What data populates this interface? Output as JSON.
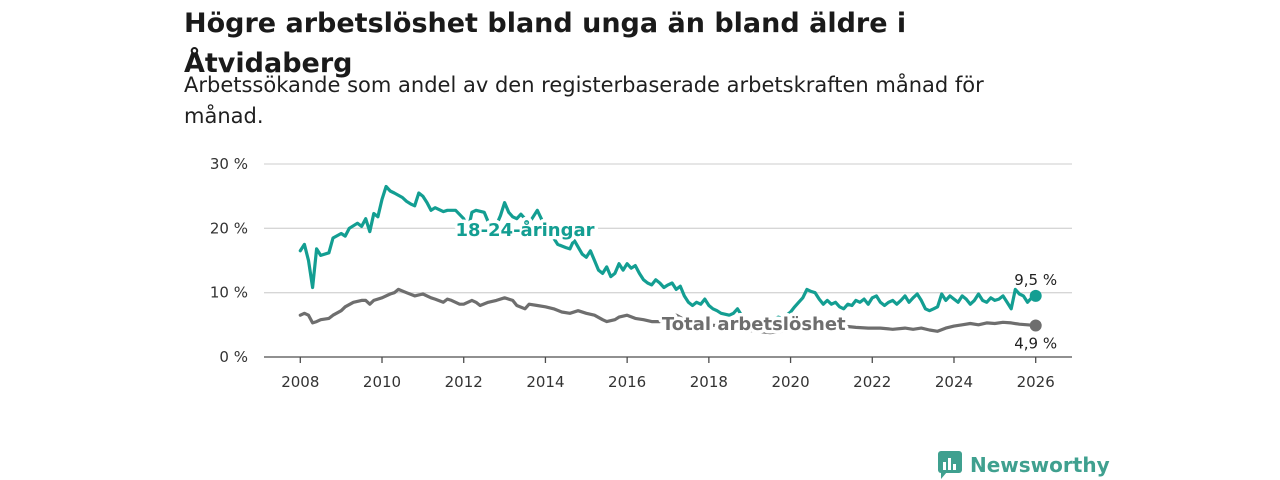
{
  "title": "Högre arbetslöshet bland unga än bland äldre i Åtvidaberg",
  "subtitle": "Arbetssökande som andel av den registerbaserade arbetskraften månad för månad.",
  "brand": {
    "name": "Newsworthy",
    "color": "#3fa08f"
  },
  "chart_data": {
    "type": "line",
    "title": "Högre arbetslöshet bland unga än bland äldre i Åtvidaberg",
    "subtitle": "Arbetssökande som andel av den registerbaserade arbetskraften månad för månad.",
    "xlabel": "",
    "ylabel": "",
    "xlim": [
      2007.5,
      2026.6
    ],
    "ylim": [
      0,
      30
    ],
    "grid": true,
    "x_ticks": [
      2008,
      2010,
      2012,
      2014,
      2016,
      2018,
      2020,
      2022,
      2024,
      2026
    ],
    "x_tick_labels": [
      "2008",
      "2010",
      "2012",
      "2014",
      "2016",
      "2018",
      "2020",
      "2022",
      "2024",
      "2026"
    ],
    "y_ticks": [
      0,
      10,
      20,
      30
    ],
    "y_tick_labels": [
      "0 %",
      "10 %",
      "20 %",
      "30 %"
    ],
    "series": [
      {
        "name": "18-24-åringar",
        "label": "18-24-åringar",
        "color": "#139e92",
        "end_label": "9,5 %",
        "points": [
          [
            2008.0,
            16.5
          ],
          [
            2008.1,
            17.5
          ],
          [
            2008.2,
            15.0
          ],
          [
            2008.3,
            10.8
          ],
          [
            2008.4,
            16.8
          ],
          [
            2008.5,
            15.8
          ],
          [
            2008.7,
            16.2
          ],
          [
            2008.8,
            18.5
          ],
          [
            2009.0,
            19.2
          ],
          [
            2009.1,
            18.8
          ],
          [
            2009.2,
            20.0
          ],
          [
            2009.4,
            20.8
          ],
          [
            2009.5,
            20.3
          ],
          [
            2009.6,
            21.5
          ],
          [
            2009.7,
            19.5
          ],
          [
            2009.8,
            22.3
          ],
          [
            2009.9,
            21.8
          ],
          [
            2010.0,
            24.5
          ],
          [
            2010.1,
            26.5
          ],
          [
            2010.2,
            25.8
          ],
          [
            2010.3,
            25.5
          ],
          [
            2010.5,
            24.8
          ],
          [
            2010.6,
            24.2
          ],
          [
            2010.7,
            23.8
          ],
          [
            2010.8,
            23.5
          ],
          [
            2010.9,
            25.5
          ],
          [
            2011.0,
            25.0
          ],
          [
            2011.1,
            24.0
          ],
          [
            2011.2,
            22.8
          ],
          [
            2011.3,
            23.2
          ],
          [
            2011.5,
            22.6
          ],
          [
            2011.6,
            22.8
          ],
          [
            2011.8,
            22.8
          ],
          [
            2012.0,
            21.5
          ],
          [
            2012.1,
            19.5
          ],
          [
            2012.2,
            22.5
          ],
          [
            2012.3,
            22.8
          ],
          [
            2012.5,
            22.5
          ],
          [
            2012.6,
            21.0
          ],
          [
            2012.8,
            20.5
          ],
          [
            2012.9,
            22.0
          ],
          [
            2013.0,
            24.0
          ],
          [
            2013.1,
            22.5
          ],
          [
            2013.2,
            21.8
          ],
          [
            2013.3,
            21.5
          ],
          [
            2013.4,
            22.2
          ],
          [
            2013.6,
            20.8
          ],
          [
            2013.8,
            22.8
          ],
          [
            2013.9,
            21.5
          ],
          [
            2014.0,
            20.0
          ],
          [
            2014.1,
            19.5
          ],
          [
            2014.2,
            18.5
          ],
          [
            2014.3,
            17.5
          ],
          [
            2014.5,
            17.0
          ],
          [
            2014.6,
            16.8
          ],
          [
            2014.7,
            18.2
          ],
          [
            2014.9,
            16.0
          ],
          [
            2015.0,
            15.5
          ],
          [
            2015.1,
            16.5
          ],
          [
            2015.2,
            15.0
          ],
          [
            2015.3,
            13.5
          ],
          [
            2015.4,
            13.0
          ],
          [
            2015.5,
            14.0
          ],
          [
            2015.6,
            12.5
          ],
          [
            2015.7,
            13.0
          ],
          [
            2015.8,
            14.5
          ],
          [
            2015.9,
            13.5
          ],
          [
            2016.0,
            14.5
          ],
          [
            2016.1,
            13.8
          ],
          [
            2016.2,
            14.2
          ],
          [
            2016.3,
            13.0
          ],
          [
            2016.4,
            12.0
          ],
          [
            2016.5,
            11.5
          ],
          [
            2016.6,
            11.2
          ],
          [
            2016.7,
            12.0
          ],
          [
            2016.8,
            11.5
          ],
          [
            2016.9,
            10.8
          ],
          [
            2017.0,
            11.2
          ],
          [
            2017.1,
            11.5
          ],
          [
            2017.2,
            10.5
          ],
          [
            2017.3,
            11.0
          ],
          [
            2017.4,
            9.5
          ],
          [
            2017.5,
            8.5
          ],
          [
            2017.6,
            8.0
          ],
          [
            2017.7,
            8.5
          ],
          [
            2017.8,
            8.2
          ],
          [
            2017.9,
            9.0
          ],
          [
            2018.0,
            8.0
          ],
          [
            2018.1,
            7.5
          ],
          [
            2018.2,
            7.2
          ],
          [
            2018.3,
            6.8
          ],
          [
            2018.5,
            6.5
          ],
          [
            2018.6,
            6.8
          ],
          [
            2018.7,
            7.5
          ],
          [
            2018.8,
            6.5
          ],
          [
            2018.9,
            6.0
          ],
          [
            2019.0,
            5.8
          ],
          [
            2019.1,
            5.5
          ],
          [
            2019.2,
            5.2
          ],
          [
            2019.3,
            5.5
          ],
          [
            2019.4,
            5.0
          ],
          [
            2019.5,
            5.3
          ],
          [
            2019.6,
            5.8
          ],
          [
            2019.7,
            6.2
          ],
          [
            2019.8,
            6.0
          ],
          [
            2019.9,
            6.5
          ],
          [
            2020.0,
            7.0
          ],
          [
            2020.1,
            7.8
          ],
          [
            2020.2,
            8.5
          ],
          [
            2020.3,
            9.2
          ],
          [
            2020.4,
            10.5
          ],
          [
            2020.5,
            10.2
          ],
          [
            2020.6,
            10.0
          ],
          [
            2020.7,
            9.0
          ],
          [
            2020.8,
            8.2
          ],
          [
            2020.9,
            8.8
          ],
          [
            2021.0,
            8.2
          ],
          [
            2021.1,
            8.5
          ],
          [
            2021.2,
            7.8
          ],
          [
            2021.3,
            7.5
          ],
          [
            2021.4,
            8.2
          ],
          [
            2021.5,
            8.0
          ],
          [
            2021.6,
            8.8
          ],
          [
            2021.7,
            8.5
          ],
          [
            2021.8,
            9.0
          ],
          [
            2021.9,
            8.2
          ],
          [
            2022.0,
            9.2
          ],
          [
            2022.1,
            9.5
          ],
          [
            2022.2,
            8.5
          ],
          [
            2022.3,
            8.0
          ],
          [
            2022.4,
            8.5
          ],
          [
            2022.5,
            8.8
          ],
          [
            2022.6,
            8.2
          ],
          [
            2022.7,
            8.8
          ],
          [
            2022.8,
            9.5
          ],
          [
            2022.9,
            8.5
          ],
          [
            2023.0,
            9.2
          ],
          [
            2023.1,
            9.8
          ],
          [
            2023.2,
            8.8
          ],
          [
            2023.3,
            7.5
          ],
          [
            2023.4,
            7.2
          ],
          [
            2023.5,
            7.5
          ],
          [
            2023.6,
            7.8
          ],
          [
            2023.7,
            9.8
          ],
          [
            2023.8,
            8.8
          ],
          [
            2023.9,
            9.5
          ],
          [
            2024.0,
            9.0
          ],
          [
            2024.1,
            8.5
          ],
          [
            2024.2,
            9.5
          ],
          [
            2024.3,
            9.0
          ],
          [
            2024.4,
            8.2
          ],
          [
            2024.5,
            8.8
          ],
          [
            2024.6,
            9.8
          ],
          [
            2024.7,
            8.8
          ],
          [
            2024.8,
            8.5
          ],
          [
            2024.9,
            9.2
          ],
          [
            2025.0,
            8.8
          ],
          [
            2025.1,
            9.0
          ],
          [
            2025.2,
            9.5
          ],
          [
            2025.3,
            8.5
          ],
          [
            2025.4,
            7.5
          ],
          [
            2025.5,
            10.5
          ],
          [
            2025.6,
            9.8
          ],
          [
            2025.7,
            9.5
          ],
          [
            2025.8,
            8.5
          ],
          [
            2025.9,
            9.2
          ],
          [
            2026.0,
            9.5
          ]
        ]
      },
      {
        "name": "Total arbetslöshet",
        "label": "Total arbetslöshet",
        "color": "#6e6e6e",
        "end_label": "4,9 %",
        "points": [
          [
            2008.0,
            6.5
          ],
          [
            2008.1,
            6.8
          ],
          [
            2008.2,
            6.5
          ],
          [
            2008.3,
            5.3
          ],
          [
            2008.4,
            5.5
          ],
          [
            2008.5,
            5.8
          ],
          [
            2008.7,
            6.0
          ],
          [
            2008.8,
            6.5
          ],
          [
            2009.0,
            7.2
          ],
          [
            2009.1,
            7.8
          ],
          [
            2009.3,
            8.5
          ],
          [
            2009.5,
            8.8
          ],
          [
            2009.6,
            8.8
          ],
          [
            2009.7,
            8.2
          ],
          [
            2009.8,
            8.8
          ],
          [
            2010.0,
            9.2
          ],
          [
            2010.2,
            9.8
          ],
          [
            2010.3,
            10.0
          ],
          [
            2010.4,
            10.5
          ],
          [
            2010.6,
            10.0
          ],
          [
            2010.8,
            9.5
          ],
          [
            2011.0,
            9.8
          ],
          [
            2011.2,
            9.2
          ],
          [
            2011.3,
            9.0
          ],
          [
            2011.5,
            8.5
          ],
          [
            2011.6,
            9.0
          ],
          [
            2011.7,
            8.8
          ],
          [
            2011.9,
            8.2
          ],
          [
            2012.0,
            8.2
          ],
          [
            2012.2,
            8.8
          ],
          [
            2012.3,
            8.5
          ],
          [
            2012.4,
            8.0
          ],
          [
            2012.6,
            8.5
          ],
          [
            2012.8,
            8.8
          ],
          [
            2013.0,
            9.2
          ],
          [
            2013.2,
            8.8
          ],
          [
            2013.3,
            8.0
          ],
          [
            2013.5,
            7.5
          ],
          [
            2013.6,
            8.2
          ],
          [
            2013.8,
            8.0
          ],
          [
            2014.0,
            7.8
          ],
          [
            2014.2,
            7.5
          ],
          [
            2014.4,
            7.0
          ],
          [
            2014.6,
            6.8
          ],
          [
            2014.8,
            7.2
          ],
          [
            2015.0,
            6.8
          ],
          [
            2015.2,
            6.5
          ],
          [
            2015.4,
            5.8
          ],
          [
            2015.5,
            5.5
          ],
          [
            2015.7,
            5.8
          ],
          [
            2015.8,
            6.2
          ],
          [
            2016.0,
            6.5
          ],
          [
            2016.2,
            6.0
          ],
          [
            2016.4,
            5.8
          ],
          [
            2016.6,
            5.5
          ],
          [
            2016.8,
            5.5
          ],
          [
            2017.0,
            5.8
          ],
          [
            2017.2,
            6.5
          ],
          [
            2017.4,
            5.8
          ],
          [
            2017.6,
            5.2
          ],
          [
            2017.8,
            5.0
          ],
          [
            2018.0,
            5.0
          ],
          [
            2018.3,
            4.8
          ],
          [
            2018.6,
            4.5
          ],
          [
            2018.9,
            4.2
          ],
          [
            2019.2,
            4.0
          ],
          [
            2019.5,
            3.8
          ],
          [
            2019.8,
            4.0
          ],
          [
            2020.1,
            4.5
          ],
          [
            2020.4,
            4.8
          ],
          [
            2020.7,
            5.2
          ],
          [
            2021.0,
            5.0
          ],
          [
            2021.3,
            4.8
          ],
          [
            2021.6,
            4.6
          ],
          [
            2021.9,
            4.5
          ],
          [
            2022.2,
            4.5
          ],
          [
            2022.5,
            4.3
          ],
          [
            2022.8,
            4.5
          ],
          [
            2023.0,
            4.3
          ],
          [
            2023.2,
            4.5
          ],
          [
            2023.4,
            4.2
          ],
          [
            2023.6,
            4.0
          ],
          [
            2023.8,
            4.5
          ],
          [
            2024.0,
            4.8
          ],
          [
            2024.2,
            5.0
          ],
          [
            2024.4,
            5.2
          ],
          [
            2024.6,
            5.0
          ],
          [
            2024.8,
            5.3
          ],
          [
            2025.0,
            5.2
          ],
          [
            2025.2,
            5.4
          ],
          [
            2025.4,
            5.3
          ],
          [
            2025.6,
            5.1
          ],
          [
            2025.8,
            5.0
          ],
          [
            2026.0,
            4.9
          ]
        ]
      }
    ]
  }
}
